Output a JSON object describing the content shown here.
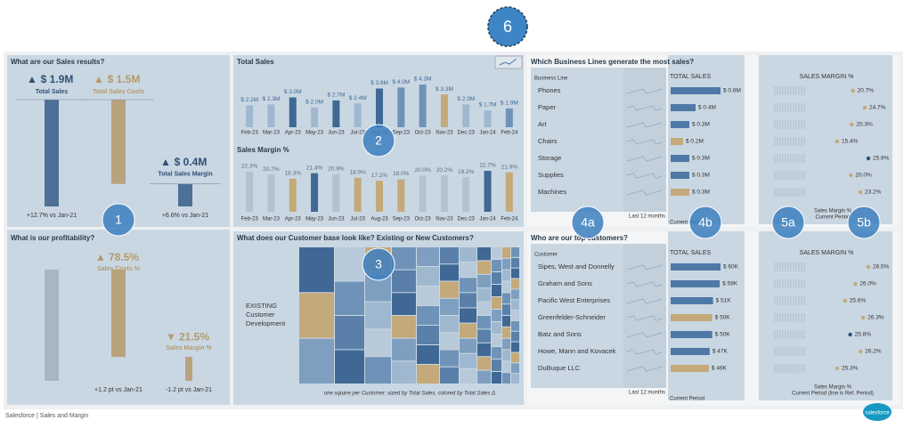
{
  "badges": [
    "1",
    "2",
    "3",
    "4a",
    "4b",
    "5a",
    "5b",
    "6"
  ],
  "sales_results": {
    "title": "What are our Sales results?",
    "kpis": [
      {
        "arrow": "▲",
        "value": 1.9,
        "value_label": "$ 1.9M",
        "label": "Total Sales",
        "change": "+12.7% vs Jan-21",
        "color": "#4e6f96"
      },
      {
        "arrow": "▲",
        "value": 1.5,
        "value_label": "$ 1.5M",
        "label": "Total Sales Costs",
        "color": "#b9a27e"
      },
      {
        "arrow": "▲",
        "value": 0.4,
        "value_label": "$ 0.4M",
        "label": "Total Sales Margin",
        "change": "+6.6% vs Jan-21",
        "color": "#4e6f96"
      }
    ]
  },
  "profitability": {
    "title": "What is our profitability?",
    "kpis": [
      {
        "arrow": "▲",
        "value": 78.5,
        "value_label": "78.5%",
        "label": "Sales Costs %",
        "change": "+1.2 pt vs Jan-21",
        "color": "#b9a27e"
      },
      {
        "arrow": "▼",
        "value": 21.5,
        "value_label": "21.5%",
        "label": "Sales Margin %",
        "change": "-1.2 pt vs Jan-21",
        "color": "#b9a27e"
      }
    ]
  },
  "monthly": {
    "title": "Total Sales",
    "categories": [
      "Feb-23",
      "Mar-23",
      "Apr-23",
      "May-23",
      "Jun-23",
      "Jul-23",
      "Aug-23",
      "Sep-23",
      "Oct-23",
      "Nov-23",
      "Dec-23",
      "Jan-24",
      "Feb-24"
    ],
    "sales": {
      "values": [
        2.2,
        2.3,
        3.0,
        2.0,
        2.7,
        2.4,
        3.9,
        4.0,
        4.3,
        3.3,
        2.3,
        1.7,
        1.9
      ],
      "value_labels": [
        "$ 2.2M",
        "$ 2.3M",
        "$ 3.0M",
        "$ 2.0M",
        "$ 2.7M",
        "$ 2.4M",
        "$ 3.9M",
        "$ 4.0M",
        "$ 4.3M",
        "$ 3.3M",
        "$ 2.3M",
        "$ 1.7M",
        "$ 1.9M"
      ],
      "colors": [
        "#9fb8d0",
        "#9fb8d0",
        "#3f6894",
        "#9fb8d0",
        "#3f6894",
        "#9fb8d0",
        "#3f6894",
        "#6f93b8",
        "#6f93b8",
        "#c4a97a",
        "#9fb8d0",
        "#9fb8d0",
        "#6f93b8"
      ]
    },
    "margin": {
      "title": "Sales Margin %",
      "values": [
        22.3,
        20.7,
        18.3,
        21.4,
        20.9,
        18.9,
        17.2,
        18.0,
        20.0,
        20.2,
        19.2,
        22.7,
        21.9
      ],
      "value_labels": [
        "22.3%",
        "20.7%",
        "18.3%",
        "21.4%",
        "20.9%",
        "18.9%",
        "17.2%",
        "18.0%",
        "20.0%",
        "20.2%",
        "19.2%",
        "22.7%",
        "21.9%"
      ],
      "colors": [
        "#b4c2cf",
        "#b4c2cf",
        "#c4a97a",
        "#3f6894",
        "#b4c2cf",
        "#c4a97a",
        "#c4a97a",
        "#c4a97a",
        "#b4c2cf",
        "#b4c2cf",
        "#b4c2cf",
        "#3f6894",
        "#c4a97a"
      ]
    }
  },
  "customer_base": {
    "title": "What does our Customer base look like? Existing or New Customers?",
    "segment": [
      "EXISTING",
      "Customer",
      "Development"
    ],
    "note": "one square per Customer: sized by Total Sales, colored by Total Sales Δ"
  },
  "business_lines": {
    "title": "Which Business Lines generate the most sales?",
    "dimension": "Business Line",
    "sales_header": "TOTAL SALES",
    "margin_header": "SALES MARGIN %",
    "rows": [
      {
        "name": "Phones",
        "sales": 0.8,
        "sales_label": "$ 0.8M",
        "margin": 20.7,
        "margin_label": "20.7%"
      },
      {
        "name": "Paper",
        "sales": 0.4,
        "sales_label": "$ 0.4M",
        "margin": 24.7,
        "margin_label": "24.7%"
      },
      {
        "name": "Art",
        "sales": 0.3,
        "sales_label": "$ 0.3M",
        "margin": 20.3,
        "margin_label": "20.3%"
      },
      {
        "name": "Chairs",
        "sales": 0.2,
        "sales_label": "$ 0.2M",
        "margin": 15.4,
        "margin_label": "15.4%"
      },
      {
        "name": "Storage",
        "sales": 0.3,
        "sales_label": "$ 0.3M",
        "margin": 25.9,
        "margin_label": "25.9%"
      },
      {
        "name": "Supplies",
        "sales": 0.3,
        "sales_label": "$ 0.3M",
        "margin": 20.0,
        "margin_label": "20.0%"
      },
      {
        "name": "Machines",
        "sales": 0.3,
        "sales_label": "$ 0.3M",
        "margin": 23.2,
        "margin_label": "23.2%"
      }
    ],
    "footer_left": "Last 12 months",
    "footer_sales": "Current Period",
    "footer_margin": [
      "Sales Margin %",
      "Current Period"
    ]
  },
  "customers": {
    "title": "Who are our top customers?",
    "dimension": "Customer",
    "sales_header": "TOTAL SALES",
    "margin_header": "SALES MARGIN %",
    "rows": [
      {
        "name": "Sipes, West and Donnelly",
        "sales": 60,
        "sales_label": "$ 60K",
        "margin": 26.5,
        "margin_label": "26.5%"
      },
      {
        "name": "Graham and Sons",
        "sales": 59,
        "sales_label": "$ 59K",
        "margin": 26.0,
        "margin_label": "26.0%"
      },
      {
        "name": "Pacific West Enterprises",
        "sales": 51,
        "sales_label": "$ 51K",
        "margin": 25.6,
        "margin_label": "25.6%"
      },
      {
        "name": "Greenfelder-Schneider",
        "sales": 50,
        "sales_label": "$ 50K",
        "margin": 26.3,
        "margin_label": "26.3%"
      },
      {
        "name": "Batz and Sons",
        "sales": 50,
        "sales_label": "$ 50K",
        "margin": 25.8,
        "margin_label": "25.8%"
      },
      {
        "name": "Howe, Mann and Kovacek",
        "sales": 47,
        "sales_label": "$ 47K",
        "margin": 26.2,
        "margin_label": "26.2%"
      },
      {
        "name": "DuBuque LLC",
        "sales": 46,
        "sales_label": "$ 46K",
        "margin": 25.3,
        "margin_label": "25.3%"
      }
    ],
    "footer_left": "Last 12 months",
    "footer_sales": "Current Period",
    "footer_margin": [
      "Sales Margin %",
      "Current Period (line is Ref. Period)"
    ]
  },
  "footer": "Salesforce | Sales and Margin",
  "logo": "salesforce"
}
